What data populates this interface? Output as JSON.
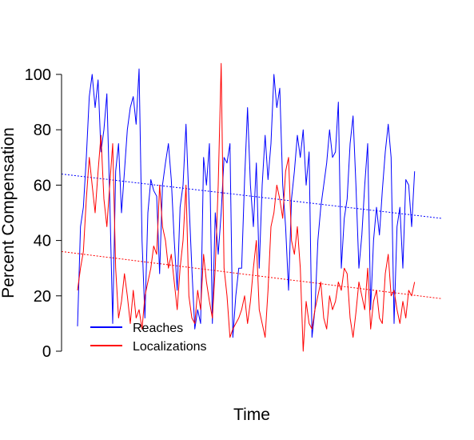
{
  "chart_data": {
    "type": "line",
    "title": "",
    "xlabel": "Time",
    "ylabel": "Percent Compensation",
    "xlim": [
      0,
      480
    ],
    "ylim": [
      0,
      100
    ],
    "y_ticks": [
      0,
      20,
      40,
      60,
      80,
      100
    ],
    "show_x_ticks": false,
    "grid": false,
    "legend_position": "bottom-left",
    "series": [
      {
        "name": "Reaches",
        "color": "#0000ff",
        "x": [
          0,
          4,
          8,
          12,
          16,
          20,
          24,
          28,
          32,
          36,
          40,
          44,
          48,
          52,
          56,
          60,
          64,
          68,
          72,
          76,
          80,
          84,
          88,
          92,
          96,
          100,
          104,
          108,
          112,
          116,
          120,
          124,
          128,
          132,
          136,
          140,
          144,
          148,
          152,
          156,
          160,
          164,
          168,
          172,
          176,
          180,
          184,
          188,
          192,
          196,
          200,
          204,
          208,
          212,
          216,
          220,
          224,
          228,
          232,
          236,
          240,
          244,
          248,
          252,
          256,
          260,
          264,
          268,
          272,
          276,
          280,
          284,
          288,
          292,
          296,
          300,
          304,
          308,
          312,
          316,
          320,
          324,
          328,
          332,
          336,
          340,
          344,
          348,
          352,
          356,
          360,
          364,
          368,
          372,
          376,
          380,
          384,
          388,
          392,
          396,
          400,
          404,
          408,
          412,
          416,
          420,
          424,
          428,
          432,
          436,
          440,
          444,
          448,
          452,
          456,
          460
        ],
        "y": [
          9,
          45,
          52,
          70,
          92,
          100,
          88,
          98,
          72,
          80,
          93,
          55,
          10,
          65,
          75,
          50,
          65,
          80,
          88,
          92,
          82,
          102,
          40,
          12,
          50,
          62,
          58,
          56,
          28,
          60,
          68,
          75,
          62,
          40,
          22,
          52,
          60,
          82,
          55,
          30,
          8,
          15,
          10,
          70,
          60,
          75,
          10,
          50,
          35,
          50,
          70,
          68,
          75,
          5,
          20,
          30,
          30,
          62,
          88,
          60,
          45,
          68,
          30,
          60,
          78,
          62,
          75,
          100,
          88,
          95,
          60,
          45,
          22,
          55,
          65,
          78,
          70,
          80,
          60,
          72,
          5,
          15,
          40,
          52,
          60,
          68,
          80,
          70,
          72,
          90,
          30,
          48,
          55,
          75,
          85,
          60,
          30,
          42,
          60,
          75,
          15,
          40,
          52,
          42,
          58,
          72,
          82,
          70,
          10,
          45,
          52,
          30,
          62,
          60,
          45,
          65
        ],
        "trend": [
          64,
          48
        ]
      },
      {
        "name": "Localizations",
        "color": "#ff0000",
        "x": [
          0,
          4,
          8,
          12,
          16,
          20,
          24,
          28,
          32,
          36,
          40,
          44,
          48,
          52,
          56,
          60,
          64,
          68,
          72,
          76,
          80,
          84,
          88,
          92,
          96,
          100,
          104,
          108,
          112,
          116,
          120,
          124,
          128,
          132,
          136,
          140,
          144,
          148,
          152,
          156,
          160,
          164,
          168,
          172,
          176,
          180,
          184,
          188,
          192,
          196,
          200,
          204,
          208,
          212,
          216,
          220,
          224,
          228,
          232,
          236,
          240,
          244,
          248,
          252,
          256,
          260,
          264,
          268,
          272,
          276,
          280,
          284,
          288,
          292,
          296,
          300,
          304,
          308,
          312,
          316,
          320,
          324,
          328,
          332,
          336,
          340,
          344,
          348,
          352,
          356,
          360,
          364,
          368,
          372,
          376,
          380,
          384,
          388,
          392,
          396,
          400,
          404,
          408,
          412,
          416,
          420,
          424,
          428,
          432,
          436,
          440,
          444,
          448,
          452,
          456,
          460
        ],
        "y": [
          22,
          30,
          36,
          55,
          70,
          60,
          50,
          65,
          78,
          55,
          45,
          60,
          75,
          30,
          12,
          18,
          28,
          20,
          10,
          22,
          12,
          15,
          8,
          20,
          25,
          30,
          38,
          35,
          60,
          45,
          40,
          30,
          35,
          25,
          15,
          30,
          40,
          60,
          20,
          12,
          10,
          22,
          15,
          35,
          25,
          18,
          12,
          30,
          60,
          104,
          30,
          20,
          5,
          8,
          10,
          12,
          15,
          20,
          10,
          18,
          30,
          40,
          15,
          10,
          5,
          22,
          45,
          50,
          60,
          55,
          48,
          65,
          70,
          40,
          35,
          45,
          30,
          0,
          18,
          10,
          8,
          15,
          20,
          25,
          12,
          8,
          20,
          15,
          18,
          25,
          22,
          30,
          28,
          12,
          5,
          14,
          25,
          20,
          15,
          30,
          8,
          18,
          22,
          12,
          10,
          28,
          35,
          20,
          22,
          15,
          10,
          18,
          12,
          22,
          20,
          25
        ],
        "trend": [
          36,
          19
        ]
      }
    ]
  }
}
